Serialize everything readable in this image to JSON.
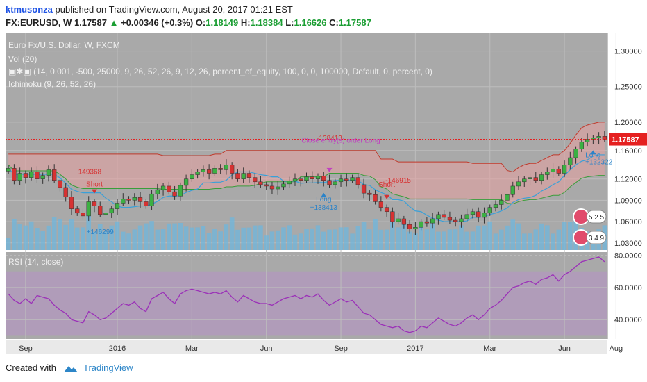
{
  "header": {
    "author": "ktmusonza",
    "published": "published on TradingView.com, August 20, 2017 01:21 EST",
    "symbol": "FX:EURUSD, W",
    "last": "1.17587",
    "change": "+0.00346 (+0.3%)",
    "o_label": "O:",
    "o": "1.18149",
    "h_label": "H:",
    "h": "1.18384",
    "l_label": "L:",
    "l": "1.16626",
    "c_label": "C:",
    "c": "1.17587"
  },
  "legend": {
    "title": "Euro Fx/U.S. Dollar, W, FXCM",
    "vol": "Vol (20)",
    "strategy": "(14, 0.001, -500, 25000, 9, 26, 52, 26, 9, 12, 26, percent_of_equity, 100, 0, 0, 100000, Default, 0, percent, 0)",
    "ichimoku": "Ichimoku (9, 26, 52, 26)",
    "rsi": "RSI (14, close)"
  },
  "footer": {
    "created_with": "Created with",
    "brand": "TradingView"
  },
  "colors": {
    "up": "#3cb043",
    "down": "#d63232",
    "panel": "#a9a9a9",
    "cloud": "#e8a0a0",
    "rsi": "#9b30b8",
    "accent": "#e52020"
  },
  "chart_data": [
    {
      "type": "candlestick",
      "title": "Euro Fx/U.S. Dollar, W, FXCM",
      "y_ticks": [
        "1.30000",
        "1.25000",
        "1.20000",
        "1.16000",
        "1.12000",
        "1.09000",
        "1.06000",
        "1.03000"
      ],
      "y_tick_values": [
        1.3,
        1.25,
        1.2,
        1.16,
        1.12,
        1.09,
        1.06,
        1.03
      ],
      "ylim": [
        1.02,
        1.325
      ],
      "last_price_label": "1.17587",
      "last_price": 1.17587,
      "x_ticks": [
        "Sep",
        "2016",
        "Mar",
        "Jun",
        "Sep",
        "2017",
        "Mar",
        "Jun",
        "Aug"
      ],
      "x_tick_index": [
        3,
        19,
        32,
        45,
        58,
        71,
        84,
        97,
        106
      ],
      "closes": [
        1.135,
        1.118,
        1.128,
        1.122,
        1.13,
        1.12,
        1.125,
        1.133,
        1.118,
        1.108,
        1.095,
        1.078,
        1.072,
        1.068,
        1.088,
        1.082,
        1.07,
        1.072,
        1.078,
        1.086,
        1.092,
        1.09,
        1.094,
        1.088,
        1.082,
        1.099,
        1.105,
        1.11,
        1.102,
        1.096,
        1.111,
        1.12,
        1.126,
        1.13,
        1.133,
        1.128,
        1.135,
        1.133,
        1.14,
        1.128,
        1.12,
        1.128,
        1.122,
        1.116,
        1.112,
        1.11,
        1.106,
        1.109,
        1.113,
        1.117,
        1.12,
        1.118,
        1.123,
        1.12,
        1.124,
        1.118,
        1.112,
        1.116,
        1.12,
        1.118,
        1.122,
        1.112,
        1.1,
        1.098,
        1.088,
        1.08,
        1.074,
        1.06,
        1.064,
        1.056,
        1.05,
        1.052,
        1.06,
        1.058,
        1.064,
        1.07,
        1.066,
        1.062,
        1.06,
        1.064,
        1.07,
        1.074,
        1.066,
        1.072,
        1.08,
        1.084,
        1.09,
        1.098,
        1.11,
        1.116,
        1.12,
        1.122,
        1.118,
        1.126,
        1.13,
        1.134,
        1.128,
        1.14,
        1.15,
        1.162,
        1.172,
        1.176,
        1.178,
        1.18,
        1.176
      ],
      "volume_note": "Vol (20)",
      "annotations": [
        {
          "text": "-149368",
          "index": 14
        },
        {
          "text": "Short",
          "index": 15
        },
        {
          "text": "+146299",
          "index": 16
        },
        {
          "text": "-138413",
          "index": 56
        },
        {
          "text": "Close entry(s) order Long",
          "index": 58
        },
        {
          "text": "Long",
          "index": 55
        },
        {
          "text": "+138413",
          "index": 55
        },
        {
          "text": "-146915",
          "index": 68
        },
        {
          "text": "Short",
          "index": 66
        },
        {
          "text": "Long",
          "index": 102
        },
        {
          "text": "+132322",
          "index": 103
        }
      ],
      "event_badges": [
        "5 2 5",
        "3 4 9"
      ]
    },
    {
      "type": "line",
      "title": "RSI (14, close)",
      "y_ticks": [
        "80.0000",
        "60.0000",
        "40.0000"
      ],
      "y_tick_values": [
        80,
        60,
        40
      ],
      "ylim": [
        28,
        82
      ],
      "values": [
        56,
        52,
        50,
        53,
        50,
        55,
        54,
        53,
        49,
        46,
        44,
        40,
        39,
        38,
        45,
        43,
        40,
        41,
        44,
        47,
        50,
        49,
        51,
        47,
        45,
        53,
        55,
        57,
        53,
        50,
        56,
        58,
        59,
        58,
        57,
        56,
        57,
        56,
        58,
        54,
        51,
        55,
        53,
        51,
        50,
        50,
        49,
        51,
        53,
        54,
        55,
        53,
        55,
        54,
        56,
        52,
        49,
        51,
        53,
        51,
        52,
        48,
        44,
        43,
        40,
        37,
        36,
        35,
        36,
        33,
        32,
        33,
        36,
        35,
        38,
        41,
        39,
        37,
        36,
        38,
        41,
        43,
        40,
        43,
        47,
        49,
        52,
        56,
        60,
        61,
        63,
        64,
        62,
        65,
        66,
        68,
        64,
        68,
        70,
        73,
        76,
        77,
        78,
        79,
        76
      ]
    }
  ]
}
